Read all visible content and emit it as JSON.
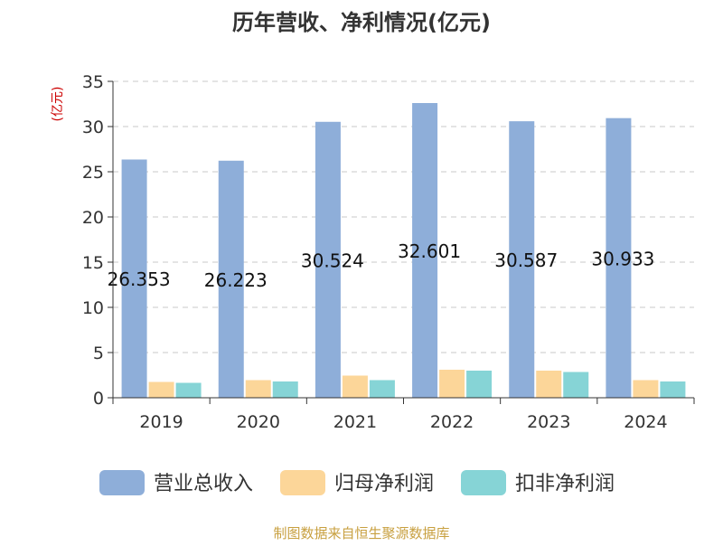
{
  "chart_data": {
    "type": "bar",
    "title": "历年营收、净利情况(亿元)",
    "ylabel": "(亿元)",
    "xlabel": "",
    "categories": [
      "2019",
      "2020",
      "2021",
      "2022",
      "2023",
      "2024"
    ],
    "ylim": [
      0,
      35
    ],
    "yticks": [
      0,
      5,
      10,
      15,
      20,
      25,
      30,
      35
    ],
    "grid": true,
    "legend": "bottom",
    "series": [
      {
        "name": "营业总收入",
        "color": "#8eaed9",
        "values": [
          26.353,
          26.223,
          30.524,
          32.601,
          30.587,
          30.933
        ],
        "labels": [
          "26.353",
          "26.223",
          "30.524",
          "32.601",
          "30.587",
          "30.933"
        ]
      },
      {
        "name": "归母净利润",
        "color": "#fcd699",
        "values": [
          1.75,
          1.95,
          2.45,
          3.1,
          3.0,
          1.95
        ]
      },
      {
        "name": "扣非净利润",
        "color": "#86d4d6",
        "values": [
          1.65,
          1.8,
          1.95,
          3.0,
          2.85,
          1.8
        ]
      }
    ]
  },
  "source": "制图数据来自恒生聚源数据库"
}
